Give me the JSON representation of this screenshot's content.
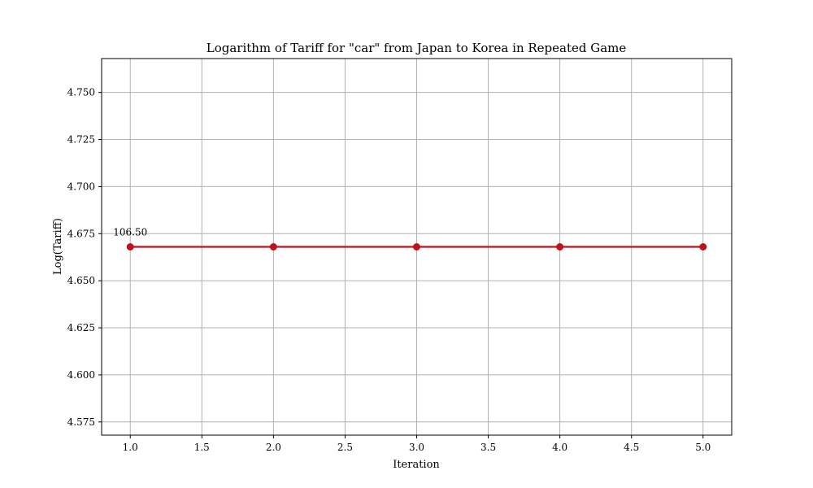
{
  "chart_data": {
    "type": "line",
    "title": "Logarithm of Tariff for \"car\" from Japan to Korea in Repeated Game",
    "xlabel": "Iteration",
    "ylabel": "Log(Tariff)",
    "xlim": [
      0.8,
      5.2
    ],
    "ylim": [
      4.568,
      4.768
    ],
    "xticks": [
      1.0,
      1.5,
      2.0,
      2.5,
      3.0,
      3.5,
      4.0,
      4.5,
      5.0
    ],
    "xtick_labels": [
      "1.0",
      "1.5",
      "2.0",
      "2.5",
      "3.0",
      "3.5",
      "4.0",
      "4.5",
      "5.0"
    ],
    "yticks": [
      4.575,
      4.6,
      4.625,
      4.65,
      4.675,
      4.7,
      4.725,
      4.75
    ],
    "ytick_labels": [
      "4.575",
      "4.600",
      "4.625",
      "4.650",
      "4.675",
      "4.700",
      "4.725",
      "4.750"
    ],
    "grid": true,
    "series": [
      {
        "x": [
          1,
          2,
          3,
          4,
          5
        ],
        "values": [
          4.668,
          4.668,
          4.668,
          4.668,
          4.668
        ],
        "color": "#c0111f",
        "marker": "circle"
      }
    ],
    "annotations": [
      {
        "x": 1,
        "y": 4.668,
        "text": "106.50"
      }
    ]
  }
}
